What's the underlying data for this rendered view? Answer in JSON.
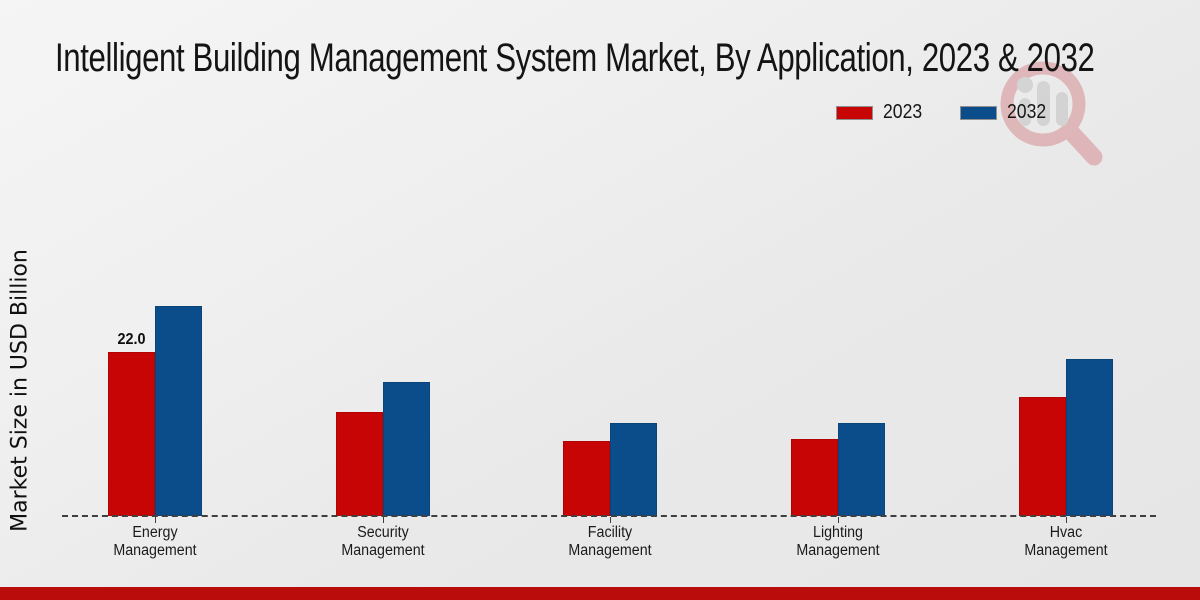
{
  "title": "Intelligent Building Management System Market, By Application, 2023 & 2032",
  "y_axis_label": "Market Size in USD Billion",
  "legend": [
    {
      "label": "2023",
      "color": "#c70505"
    },
    {
      "label": "2032",
      "color": "#0a4d8a"
    }
  ],
  "watermark_icon": "magnifier-bar-chart-logo",
  "footer_bar_color": "#bb0c0c",
  "colors": {
    "series_2023": "#c70505",
    "series_2032": "#0a4d8a",
    "baseline": "#3f3f3f",
    "background": "#ececec"
  },
  "chart_data": {
    "type": "bar",
    "title": "Intelligent Building Management System Market, By Application, 2023 & 2032",
    "xlabel": "",
    "ylabel": "Market Size in USD Billion",
    "categories": [
      "Energy Management",
      "Security Management",
      "Facility Management",
      "Lighting Management",
      "Hvac Management"
    ],
    "series": [
      {
        "name": "2023",
        "color": "#c70505",
        "values": [
          22.0,
          13.9,
          10.0,
          10.3,
          16.0
        ]
      },
      {
        "name": "2032",
        "color": "#0a4d8a",
        "values": [
          28.2,
          18.0,
          12.5,
          12.5,
          21.0
        ]
      }
    ],
    "value_labels": [
      {
        "series": "2023",
        "category": "Energy Management",
        "text": "22.0"
      }
    ],
    "ylim": [
      0,
      30
    ],
    "grid": false,
    "y_ticks_visible": false,
    "legend_position": "top-right",
    "baseline_style": "dashed"
  }
}
